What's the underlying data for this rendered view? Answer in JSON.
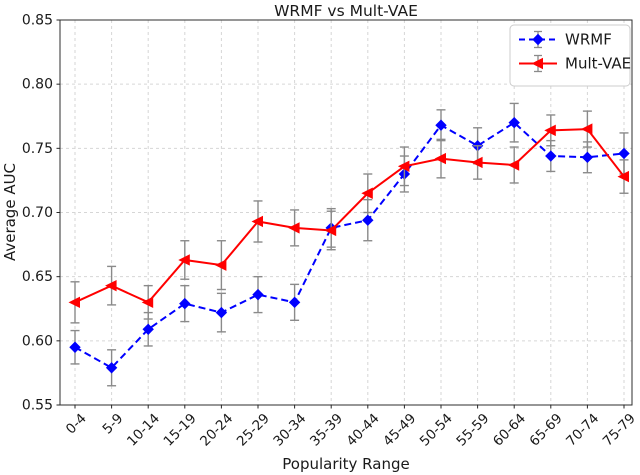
{
  "chart_data": {
    "type": "line",
    "title": "WRMF vs Mult-VAE",
    "xlabel": "Popularity Range",
    "ylabel": "Average AUC",
    "categories": [
      "0-4",
      "5-9",
      "10-14",
      "15-19",
      "20-24",
      "25-29",
      "30-34",
      "35-39",
      "40-44",
      "45-49",
      "50-54",
      "55-59",
      "60-64",
      "65-69",
      "70-74",
      "75-79"
    ],
    "series": [
      {
        "name": "WRMF",
        "color": "#0000ff",
        "line_style": "dashed",
        "marker": "diamond",
        "values": [
          0.595,
          0.579,
          0.609,
          0.629,
          0.622,
          0.636,
          0.63,
          0.688,
          0.694,
          0.73,
          0.768,
          0.752,
          0.77,
          0.744,
          0.743,
          0.746
        ],
        "errors": [
          0.013,
          0.014,
          0.013,
          0.014,
          0.015,
          0.014,
          0.014,
          0.015,
          0.016,
          0.014,
          0.012,
          0.014,
          0.015,
          0.012,
          0.012,
          0.016
        ]
      },
      {
        "name": "Mult-VAE",
        "color": "#ff0000",
        "line_style": "solid",
        "marker": "triangle-left",
        "values": [
          0.63,
          0.643,
          0.63,
          0.663,
          0.659,
          0.693,
          0.688,
          0.686,
          0.715,
          0.736,
          0.742,
          0.739,
          0.737,
          0.764,
          0.765,
          0.728
        ],
        "errors": [
          0.016,
          0.015,
          0.013,
          0.015,
          0.019,
          0.016,
          0.014,
          0.015,
          0.015,
          0.015,
          0.015,
          0.013,
          0.014,
          0.012,
          0.014,
          0.013
        ]
      }
    ],
    "ylim": [
      0.55,
      0.85
    ],
    "yticks": [
      0.55,
      0.6,
      0.65,
      0.7,
      0.75,
      0.8,
      0.85
    ],
    "grid": true,
    "legend_position": "upper right",
    "error_bar_color": "#8a8a8a",
    "grid_color": "#d6d6d6",
    "spine_color": "#2e2e2e",
    "tick_color": "#262626"
  }
}
